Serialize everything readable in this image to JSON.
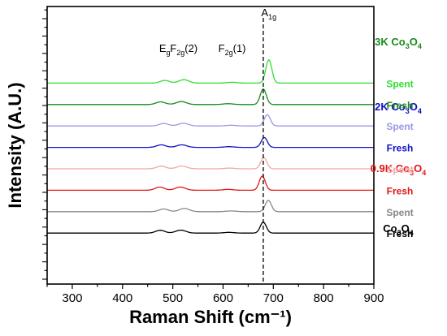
{
  "chart_data": {
    "type": "line",
    "xlabel": "Raman Shift (cm⁻¹)",
    "ylabel": "Intensity (A.U.)",
    "xlim": [
      250,
      900
    ],
    "xticks": [
      "300",
      "400",
      "500",
      "600",
      "700",
      "800",
      "900"
    ],
    "y_ticks_labeled": false,
    "grid": false,
    "reference_line_x": 680,
    "peaks": [
      {
        "label_base": "E",
        "label_sub": "g",
        "label_tail": "",
        "x": 484
      },
      {
        "label_base": "F",
        "label_sub": "2g",
        "label_tail": "(2)",
        "x": 522
      },
      {
        "label_base": "F",
        "label_sub": "2g",
        "label_tail": "(1)",
        "x": 618
      },
      {
        "label_base": "A",
        "label_sub": "1g",
        "label_tail": "",
        "x": 691
      }
    ],
    "samples": [
      {
        "title_base": "3K Co",
        "title_sub1": "3",
        "title_mid": "O",
        "title_sub2": "4",
        "color": "#1a8a1a"
      },
      {
        "title_base": "2K Co",
        "title_sub1": "3",
        "title_mid": "O",
        "title_sub2": "4",
        "color": "#1010c8"
      },
      {
        "title_base": "0.9K Co",
        "title_sub1": "3",
        "title_mid": "O",
        "title_sub2": "4",
        "color": "#e01818"
      },
      {
        "title_base": "Co",
        "title_sub1": "3",
        "title_mid": "O",
        "title_sub2": "4",
        "color": "#000000"
      }
    ],
    "series": [
      {
        "sample": 0,
        "state": "Spent",
        "color": "#33dd33",
        "offset": 9,
        "amp": 3.0,
        "baseline": 0.0,
        "peaks": [
          [
            484,
            0.38,
            9
          ],
          [
            522,
            0.48,
            10
          ],
          [
            618,
            0.12,
            10
          ],
          [
            691,
            3.3,
            6
          ]
        ]
      },
      {
        "sample": 0,
        "state": "Fresh",
        "color": "#1a8a1a",
        "offset": 8,
        "amp": 3.0,
        "baseline": 0.0,
        "peaks": [
          [
            476,
            0.38,
            9
          ],
          [
            517,
            0.42,
            10
          ],
          [
            610,
            0.12,
            10
          ],
          [
            680,
            2.2,
            6
          ]
        ]
      },
      {
        "sample": 1,
        "state": "Spent",
        "color": "#9999e6",
        "offset": 7,
        "amp": 3.0,
        "baseline": 0.0,
        "peaks": [
          [
            482,
            0.35,
            9
          ],
          [
            521,
            0.38,
            10
          ],
          [
            616,
            0.1,
            10
          ],
          [
            688,
            1.6,
            6
          ]
        ]
      },
      {
        "sample": 1,
        "state": "Fresh",
        "color": "#1010c8",
        "offset": 6,
        "amp": 3.0,
        "baseline": 0.0,
        "peaks": [
          [
            477,
            0.36,
            9
          ],
          [
            518,
            0.36,
            10
          ],
          [
            612,
            0.1,
            10
          ],
          [
            682,
            1.4,
            6
          ]
        ]
      },
      {
        "sample": 2,
        "state": "Spent",
        "color": "#f0a8a8",
        "offset": 5,
        "amp": 3.0,
        "baseline": 0.0,
        "peaks": [
          [
            477,
            0.38,
            9
          ],
          [
            518,
            0.4,
            10
          ],
          [
            613,
            0.1,
            10
          ],
          [
            681,
            1.6,
            6
          ]
        ]
      },
      {
        "sample": 2,
        "state": "Fresh",
        "color": "#e01818",
        "offset": 4,
        "amp": 3.0,
        "baseline": 0.0,
        "peaks": [
          [
            474,
            0.45,
            9
          ],
          [
            515,
            0.45,
            10
          ],
          [
            610,
            0.12,
            10
          ],
          [
            678,
            2.0,
            6
          ]
        ]
      },
      {
        "sample": 3,
        "state": "Spent",
        "color": "#888888",
        "offset": 3,
        "amp": 3.0,
        "baseline": 0.0,
        "peaks": [
          [
            482,
            0.38,
            9
          ],
          [
            523,
            0.45,
            10
          ],
          [
            616,
            0.1,
            10
          ],
          [
            690,
            1.6,
            6
          ]
        ]
      },
      {
        "sample": 3,
        "state": "Fresh",
        "color": "#000000",
        "offset": 2,
        "amp": 3.0,
        "baseline": 0.0,
        "peaks": [
          [
            475,
            0.4,
            9
          ],
          [
            516,
            0.42,
            10
          ],
          [
            612,
            0.1,
            10
          ],
          [
            680,
            1.55,
            6
          ]
        ]
      }
    ]
  }
}
